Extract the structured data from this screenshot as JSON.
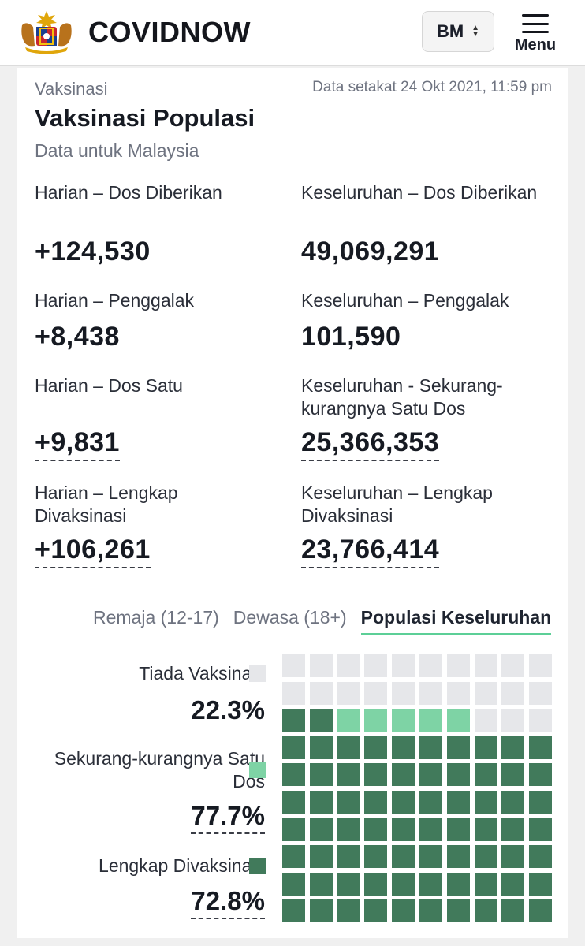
{
  "header": {
    "brand": "COVIDNOW",
    "language": "BM",
    "menu_label": "Menu",
    "crest_icon": "malaysia-coat-of-arms-icon"
  },
  "card": {
    "section": "Vaksinasi",
    "as_of": "Data setakat 24 Okt 2021, 11:59 pm",
    "title": "Vaksinasi Populasi",
    "subtitle": "Data untuk Malaysia"
  },
  "stats": {
    "daily_doses": {
      "label": "Harian – Dos Diberikan",
      "value": "+124,530"
    },
    "total_doses": {
      "label": "Keseluruhan – Dos Diberikan",
      "value": "49,069,291"
    },
    "daily_booster": {
      "label": "Harian – Penggalak",
      "value": "+8,438"
    },
    "total_booster": {
      "label": "Keseluruhan – Penggalak",
      "value": "101,590"
    },
    "daily_first": {
      "label": "Harian – Dos Satu",
      "value": "+9,831"
    },
    "total_first": {
      "label": "Keseluruhan - Sekurang-kurangnya Satu Dos",
      "value": "25,366,353"
    },
    "daily_full": {
      "label": "Harian – Lengkap Divaksinasi",
      "value": "+106,261"
    },
    "total_full": {
      "label": "Keseluruhan – Lengkap Divaksinasi",
      "value": "23,766,414"
    }
  },
  "tabs": [
    {
      "label": "Remaja (12-17)",
      "active": false
    },
    {
      "label": "Dewasa (18+)",
      "active": false
    },
    {
      "label": "Populasi Keseluruhan",
      "active": true
    }
  ],
  "waffle": {
    "unvaccinated": {
      "label": "Tiada Vaksinasi",
      "pct": "22.3%",
      "color": "#e6e7ea"
    },
    "partial": {
      "label": "Sekurang-kurangnya Satu Dos",
      "pct": "77.7%",
      "color": "#7ed3a5"
    },
    "full": {
      "label": "Lengkap Divaksinasi",
      "pct": "72.8%",
      "color": "#417a5b"
    },
    "cells_unvaccinated": 23,
    "cells_partial_only": 5,
    "cells_full": 72
  }
}
